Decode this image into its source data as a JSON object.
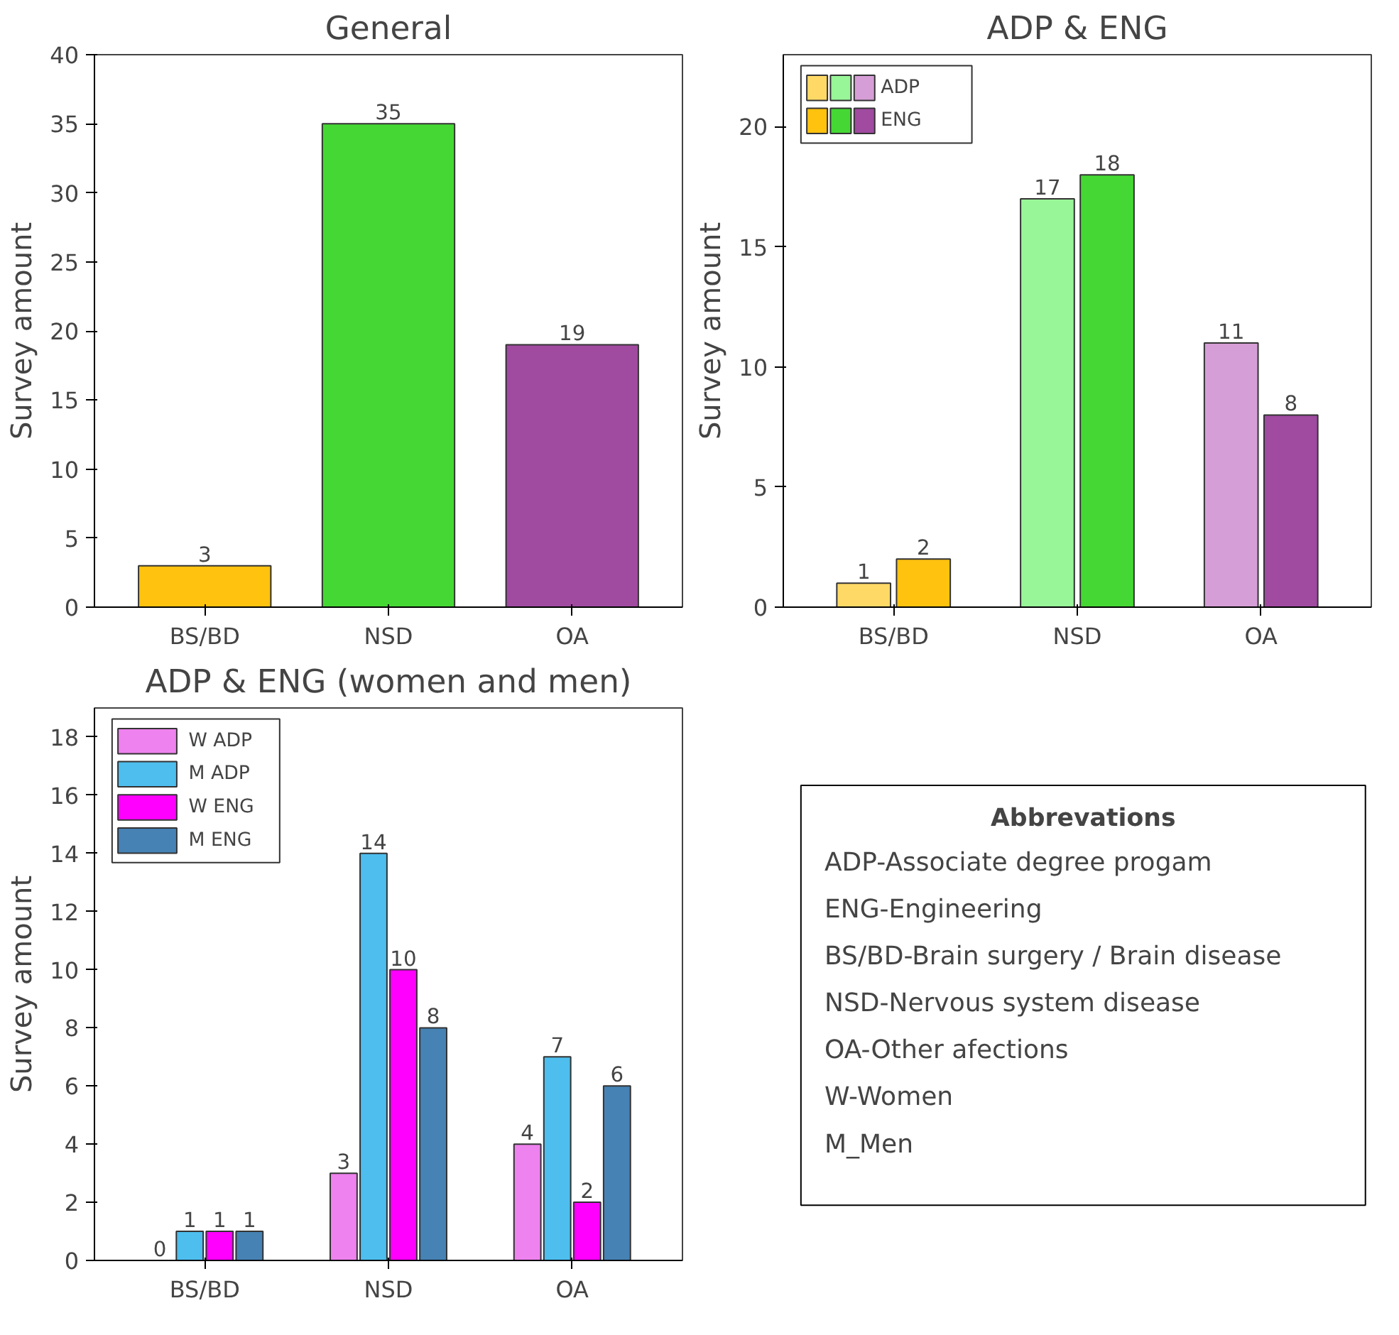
{
  "chart_data": [
    {
      "type": "bar",
      "title": "General",
      "ylabel": "Survey amount",
      "categories": [
        "BS/BD",
        "NSD",
        "OA"
      ],
      "series": [
        {
          "values": [
            3,
            35,
            19
          ],
          "colors": [
            "#ffc20e",
            "#45d834",
            "#a04aa0"
          ]
        }
      ],
      "ylim": [
        0,
        40
      ],
      "yticks": [
        0,
        5,
        10,
        15,
        20,
        25,
        30,
        35,
        40
      ],
      "data_labels": true
    },
    {
      "type": "bar",
      "title": "ADP & ENG",
      "ylabel": "Survey amount",
      "categories": [
        "BS/BD",
        "NSD",
        "OA"
      ],
      "series": [
        {
          "name": "ADP",
          "values": [
            1,
            17,
            11
          ],
          "colors": [
            "#ffd966",
            "#98f598",
            "#d69ed6"
          ]
        },
        {
          "name": "ENG",
          "values": [
            2,
            18,
            8
          ],
          "colors": [
            "#ffc20e",
            "#45d834",
            "#a04aa0"
          ]
        }
      ],
      "ylim": [
        0,
        23
      ],
      "yticks": [
        0,
        5,
        10,
        15,
        20
      ],
      "data_labels": true,
      "legend": "top left"
    },
    {
      "type": "bar",
      "title": "ADP & ENG (women and men)",
      "ylabel": "Survey amount",
      "categories": [
        "BS/BD",
        "NSD",
        "OA"
      ],
      "series": [
        {
          "name": "W ADP",
          "color": "#ee82ee",
          "values": [
            0,
            3,
            4
          ]
        },
        {
          "name": "M ADP",
          "color": "#4dbeee",
          "values": [
            1,
            14,
            7
          ]
        },
        {
          "name": "W ENG",
          "color": "#ff00ff",
          "values": [
            1,
            10,
            2
          ]
        },
        {
          "name": "M ENG",
          "color": "#4682b4",
          "values": [
            1,
            8,
            6
          ]
        }
      ],
      "ylim": [
        0,
        19
      ],
      "yticks": [
        0,
        2,
        4,
        6,
        8,
        10,
        12,
        14,
        16,
        18
      ],
      "data_labels": true,
      "legend": "top left"
    },
    {
      "type": "other",
      "title": "Abbrevations",
      "annotations": [
        "ADP-Associate degree progam",
        "ENG-Engineering",
        "BS/BD-Brain surgery / Brain disease",
        "NSD-Nervous system disease",
        "OA-Other afections",
        "W-Women",
        "M_Men"
      ]
    }
  ]
}
